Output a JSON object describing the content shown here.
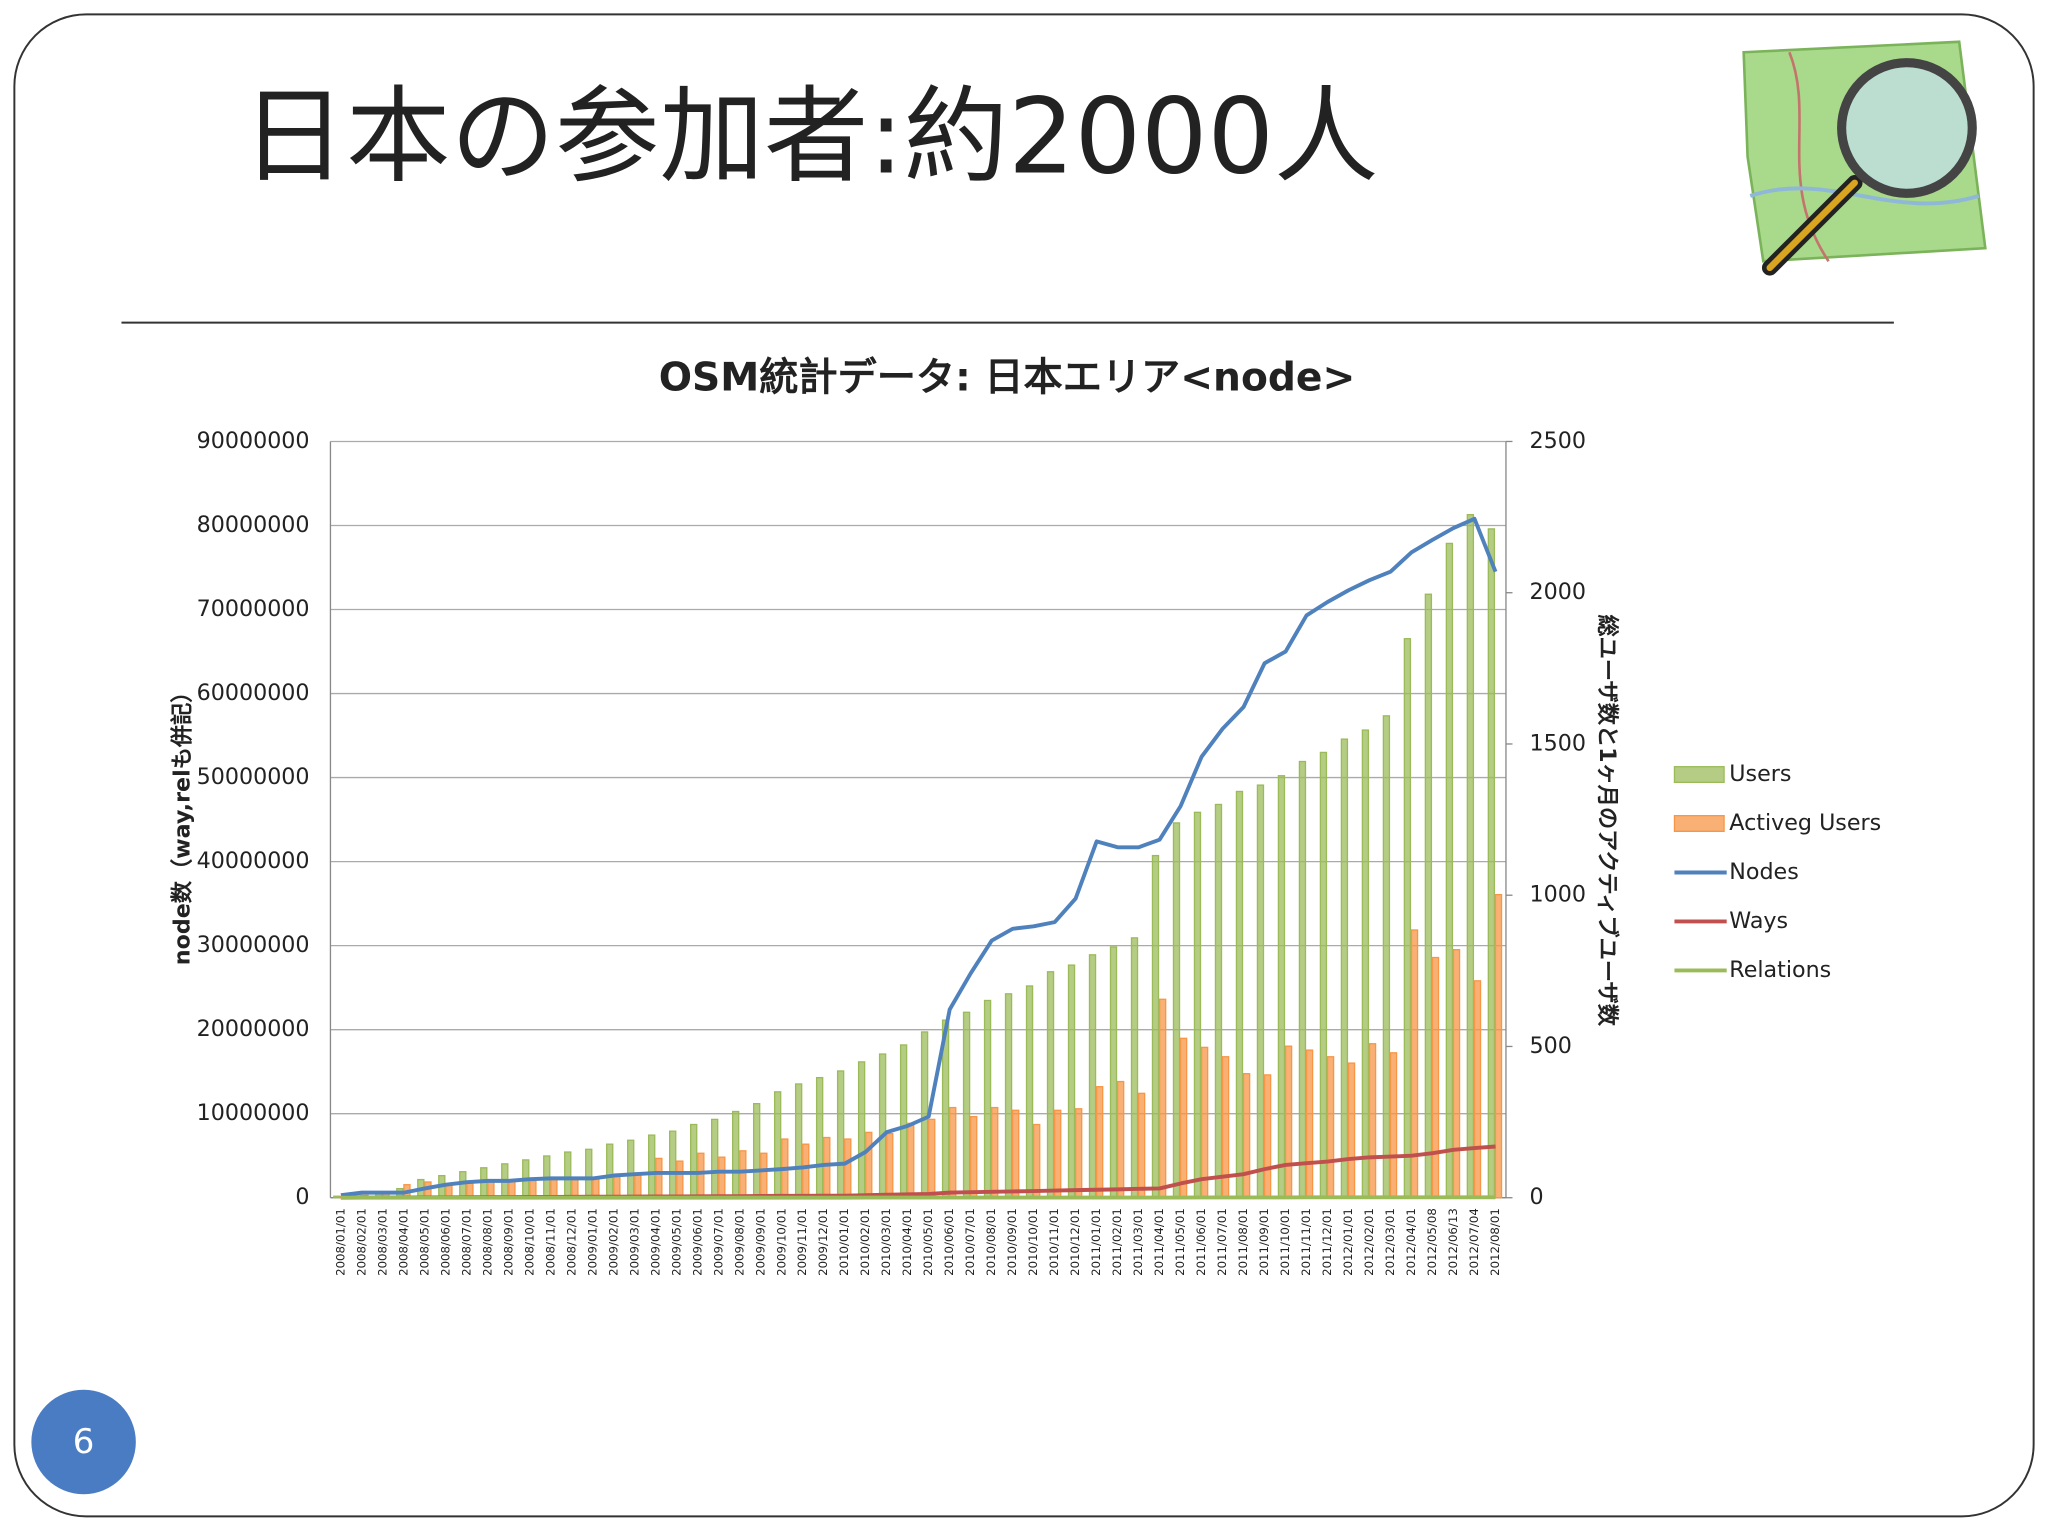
{
  "slide": {
    "title": "日本の参加者:約2000人",
    "page_number": "6"
  },
  "chart_data": {
    "type": "combo",
    "title": "OSM統計データ: 日本エリア<node>",
    "ylabel": "node数（way,relも併記）",
    "y2label": "総ユーザ数と1ヶ月のアクティブユーザ数",
    "categories": [
      "2008/01/01",
      "2008/02/01",
      "2008/03/01",
      "2008/04/01",
      "2008/05/01",
      "2008/06/01",
      "2008/07/01",
      "2008/08/01",
      "2008/09/01",
      "2008/10/01",
      "2008/11/01",
      "2008/12/01",
      "2009/01/01",
      "2009/02/01",
      "2009/03/01",
      "2009/04/01",
      "2009/05/01",
      "2009/06/01",
      "2009/07/01",
      "2009/08/01",
      "2009/09/01",
      "2009/10/01",
      "2009/11/01",
      "2009/12/01",
      "2010/01/01",
      "2010/02/01",
      "2010/03/01",
      "2010/04/01",
      "2010/05/01",
      "2010/06/01",
      "2010/07/01",
      "2010/08/01",
      "2010/09/01",
      "2010/10/01",
      "2010/11/01",
      "2010/12/01",
      "2011/01/01",
      "2011/02/01",
      "2011/03/01",
      "2011/04/01",
      "2011/05/01",
      "2011/06/01",
      "2011/07/01",
      "2011/08/01",
      "2011/09/01",
      "2011/10/01",
      "2011/11/01",
      "2011/12/01",
      "2012/01/01",
      "2012/02/01",
      "2012/03/01",
      "2012/04/01",
      "2012/05/08",
      "2012/06/13",
      "2012/07/04",
      "2012/08/01"
    ],
    "series": [
      {
        "name": "Users",
        "type": "bar",
        "axis": "y2",
        "color": "#9bbb59",
        "values": [
          5,
          15,
          20,
          30,
          60,
          73,
          86,
          99,
          112,
          125,
          138,
          151,
          160,
          177,
          190,
          207,
          220,
          242,
          259,
          285,
          311,
          350,
          376,
          397,
          419,
          449,
          475,
          505,
          548,
          587,
          613,
          652,
          674,
          700,
          747,
          769,
          803,
          829,
          859,
          1131,
          1239,
          1274,
          1300,
          1343,
          1364,
          1395,
          1442,
          1472,
          1516,
          1546,
          1593,
          1848,
          1995,
          2163,
          2258,
          2211
        ]
      },
      {
        "name": "Activeg Users",
        "type": "bar",
        "axis": "y2",
        "color": "#f79646",
        "values": [
          3,
          8,
          15,
          43,
          52,
          43,
          48,
          56,
          56,
          56,
          65,
          65,
          65,
          78,
          82,
          130,
          121,
          147,
          134,
          155,
          147,
          194,
          177,
          199,
          194,
          216,
          212,
          246,
          259,
          298,
          268,
          298,
          289,
          242,
          289,
          294,
          367,
          384,
          345,
          656,
          527,
          497,
          466,
          410,
          406,
          501,
          488,
          466,
          445,
          509,
          479,
          885,
          794,
          820,
          717,
          1002
        ]
      },
      {
        "name": "Nodes",
        "type": "line",
        "color": "#4f81bd",
        "values": [
          300000,
          600000,
          600000,
          600000,
          1100000,
          1550000,
          1850000,
          2000000,
          2000000,
          2200000,
          2300000,
          2300000,
          2300000,
          2650000,
          2800000,
          2950000,
          2950000,
          2950000,
          3100000,
          3100000,
          3250000,
          3400000,
          3600000,
          3900000,
          4050000,
          5450000,
          7800000,
          8550000,
          9650000,
          22400000,
          26700000,
          30600000,
          32000000,
          32300000,
          32800000,
          35600000,
          42400000,
          41700000,
          41700000,
          42600000,
          46600000,
          52500000,
          55800000,
          58400000,
          63600000,
          65000000,
          69300000,
          70900000,
          72300000,
          73500000,
          74500000,
          76800000,
          78300000,
          79700000,
          80800000,
          74500000
        ]
      },
      {
        "name": "Ways",
        "type": "line",
        "color": "#c0504d",
        "values": [
          0,
          10000,
          20000,
          30000,
          40000,
          50000,
          60000,
          70000,
          80000,
          90000,
          100000,
          110000,
          120000,
          130000,
          140000,
          150000,
          160000,
          170000,
          180000,
          190000,
          200000,
          210000,
          220000,
          230000,
          240000,
          300000,
          350000,
          400000,
          450000,
          600000,
          650000,
          700000,
          750000,
          800000,
          850000,
          900000,
          950000,
          1000000,
          1050000,
          1100000,
          1700000,
          2200000,
          2500000,
          2800000,
          3400000,
          3900000,
          4100000,
          4300000,
          4600000,
          4800000,
          4900000,
          5000000,
          5300000,
          5700000,
          5900000,
          6100000
        ]
      },
      {
        "name": "Relations",
        "type": "line",
        "color": "#9bbb59",
        "values": [
          0,
          0,
          0,
          0,
          0,
          0,
          0,
          0,
          0,
          0,
          0,
          0,
          0,
          0,
          0,
          0,
          0,
          0,
          0,
          0,
          0,
          0,
          0,
          0,
          0,
          10000,
          10000,
          10000,
          10000,
          10000,
          10000,
          10000,
          10000,
          10000,
          10000,
          10000,
          20000,
          20000,
          20000,
          20000,
          20000,
          30000,
          30000,
          30000,
          30000,
          30000,
          40000,
          40000,
          40000,
          40000,
          40000,
          50000,
          50000,
          50000,
          50000,
          50000
        ]
      }
    ],
    "ylim": [
      0,
      90000000
    ],
    "yticks": [
      0,
      10000000,
      20000000,
      30000000,
      40000000,
      50000000,
      60000000,
      70000000,
      80000000,
      90000000
    ],
    "y2lim": [
      0,
      2500
    ],
    "y2ticks": [
      0,
      500,
      1000,
      1500,
      2000,
      2500
    ],
    "grid": true,
    "legend": "right"
  }
}
